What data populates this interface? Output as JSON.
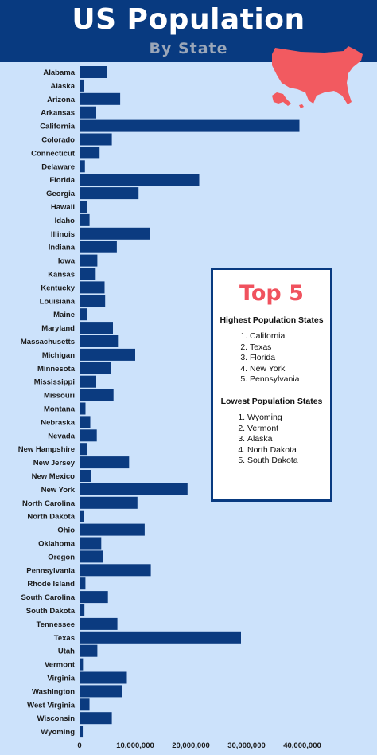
{
  "title": "US Population",
  "subtitle": "By State",
  "colors": {
    "header": "#083a80",
    "bar": "#0b3b80",
    "background": "#cce2fb",
    "accent": "#f0525e",
    "map": "#f25a60"
  },
  "top5": {
    "heading": "Top 5",
    "highest_title": "Highest Population States",
    "highest": [
      "California",
      "Texas",
      "Florida",
      "New York",
      "Pennsylvania"
    ],
    "lowest_title": "Lowest Population States",
    "lowest": [
      "Wyoming",
      "Vermont",
      "Alaska",
      "North Dakota",
      "South Dakota"
    ]
  },
  "chart_data": {
    "type": "bar",
    "orientation": "horizontal",
    "categories": [
      "Alabama",
      "Alaska",
      "Arizona",
      "Arkansas",
      "California",
      "Colorado",
      "Connecticut",
      "Delaware",
      "Florida",
      "Georgia",
      "Hawaii",
      "Idaho",
      "Illinois",
      "Indiana",
      "Iowa",
      "Kansas",
      "Kentucky",
      "Louisiana",
      "Maine",
      "Maryland",
      "Massachusetts",
      "Michigan",
      "Minnesota",
      "Mississippi",
      "Missouri",
      "Montana",
      "Nebraska",
      "Nevada",
      "New Hampshire",
      "New Jersey",
      "New Mexico",
      "New York",
      "North Carolina",
      "North Dakota",
      "Ohio",
      "Oklahoma",
      "Oregon",
      "Pennsylvania",
      "Rhode Island",
      "South Carolina",
      "South Dakota",
      "Tennessee",
      "Texas",
      "Utah",
      "Vermont",
      "Virginia",
      "Washington",
      "West Virginia",
      "Wisconsin",
      "Wyoming"
    ],
    "values": [
      4900000,
      730000,
      7300000,
      3000000,
      39500000,
      5800000,
      3600000,
      970000,
      21500000,
      10600000,
      1400000,
      1800000,
      12700000,
      6700000,
      3200000,
      2900000,
      4500000,
      4600000,
      1340000,
      6000000,
      6900000,
      10000000,
      5600000,
      3000000,
      6100000,
      1070000,
      1930000,
      3100000,
      1360000,
      8900000,
      2100000,
      19400000,
      10400000,
      760000,
      11700000,
      3900000,
      4200000,
      12800000,
      1060000,
      5100000,
      880000,
      6800000,
      29000000,
      3200000,
      620000,
      8500000,
      7600000,
      1790000,
      5800000,
      580000
    ],
    "xticks": [
      "0",
      "10,000,000",
      "20,000,000",
      "30,000,000",
      "40,000,000"
    ],
    "xlim": [
      0,
      40000000
    ],
    "grid": false
  }
}
